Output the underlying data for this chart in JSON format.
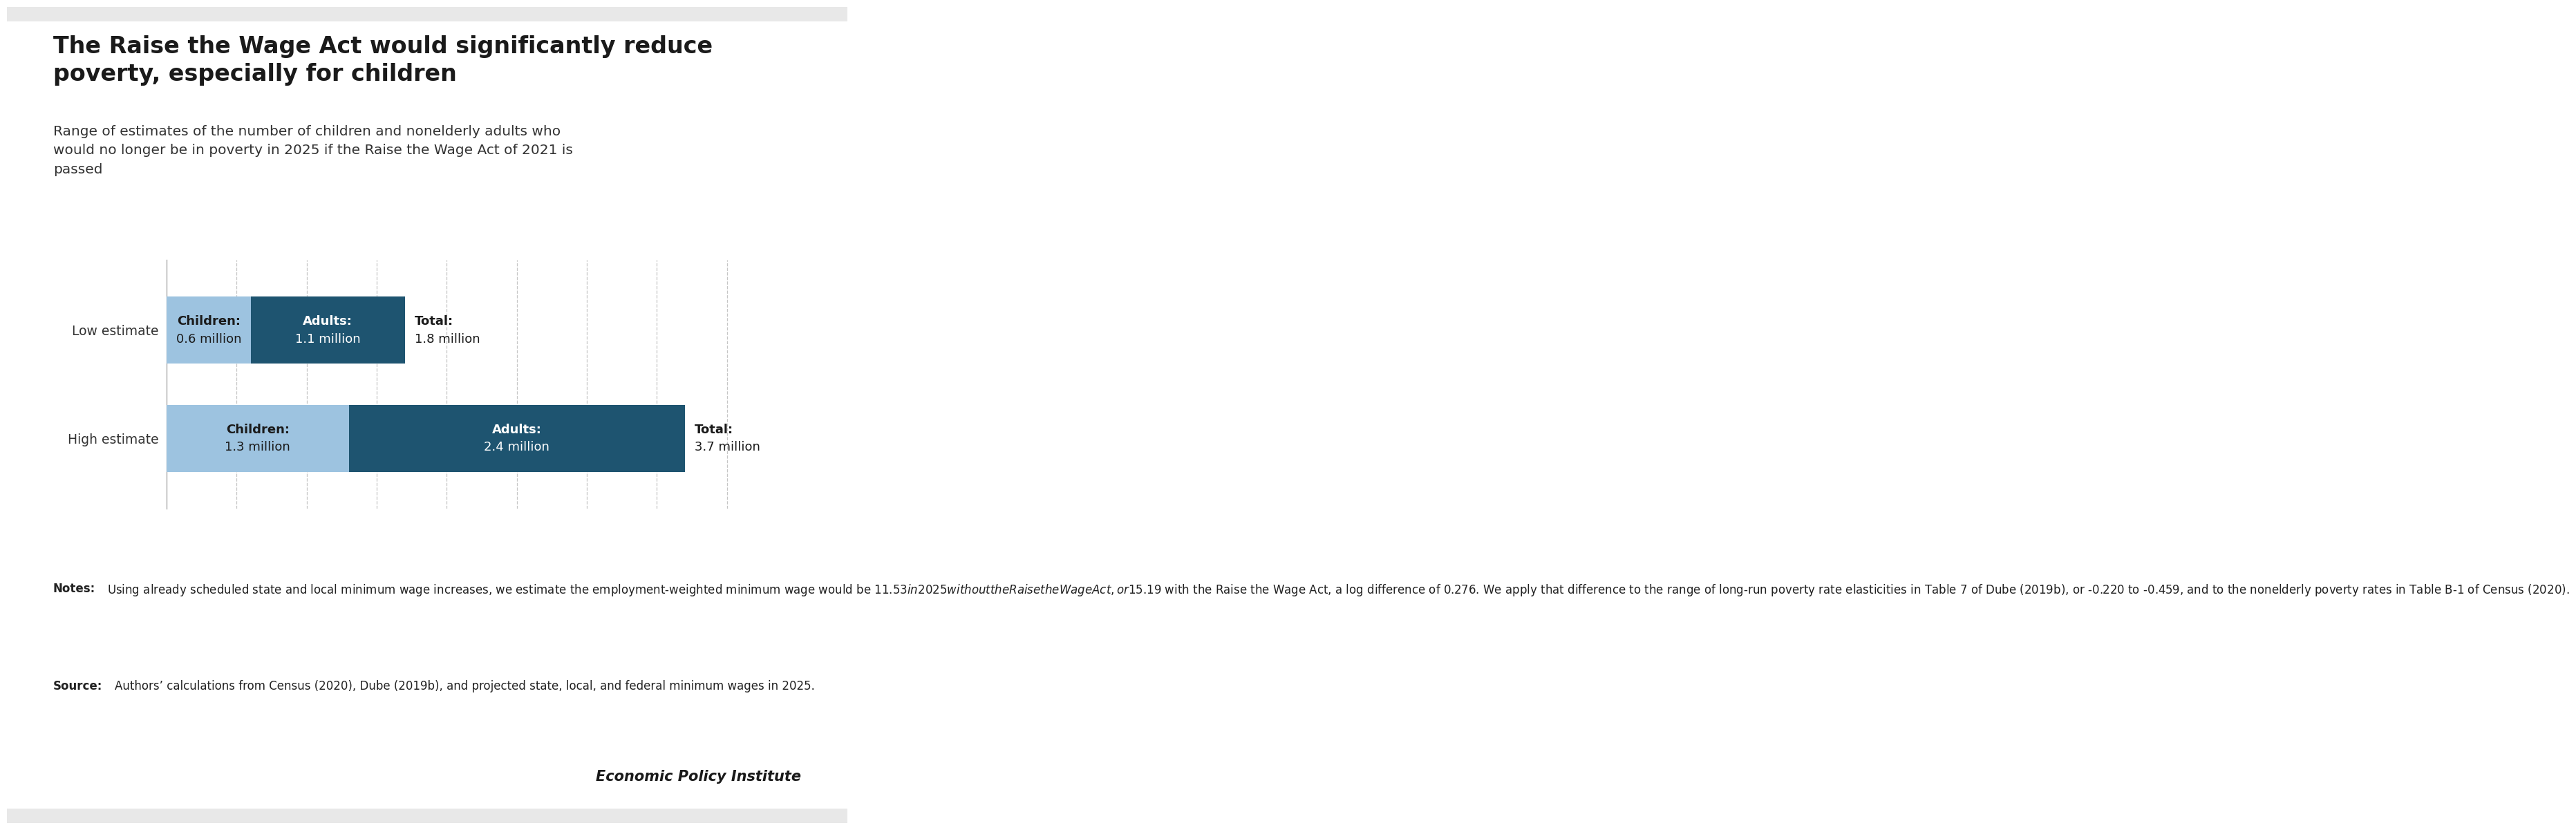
{
  "title": "The Raise the Wage Act would significantly reduce\npoverty, especially for children",
  "subtitle": "Range of estimates of the number of children and nonelderly adults who\nwould no longer be in poverty in 2025 if the Raise the Wage Act of 2021 is\npassed",
  "categories": [
    "Low estimate",
    "High estimate"
  ],
  "children_values": [
    0.6,
    1.3
  ],
  "adults_values": [
    1.1,
    2.4
  ],
  "totals": [
    "1.8 million",
    "3.7 million"
  ],
  "color_children": "#9dc3e0",
  "color_adults": "#1e5470",
  "xlim": [
    0,
    4.2
  ],
  "background_color": "#ffffff",
  "outer_background": "#e8e8e8",
  "title_color": "#1a1a1a",
  "axis_label_color": "#333333",
  "branding": "Economic Policy Institute",
  "grid_color": "#c0c0c0",
  "bar_height": 0.62,
  "tick_values": [
    0.5,
    1.0,
    1.5,
    2.0,
    2.5,
    3.0,
    3.5,
    4.0
  ],
  "notes_body": "Using already scheduled state and local minimum wage increases, we estimate the employment-weighted minimum wage would be $11.53 in 2025 without the Raise the Wage Act, or $15.19 with the Raise the Wage Act, a log difference of 0.276. We apply that difference to the range of long-run poverty rate elasticities in Table 7 of Dube (2019b), or -0.220 to -0.459, and to the nonelderly poverty rates in Table B-1 of Census (2020).",
  "source_body": "Authors’ calculations from Census (2020), Dube (2019b), and projected state, local, and federal minimum wages in 2025."
}
